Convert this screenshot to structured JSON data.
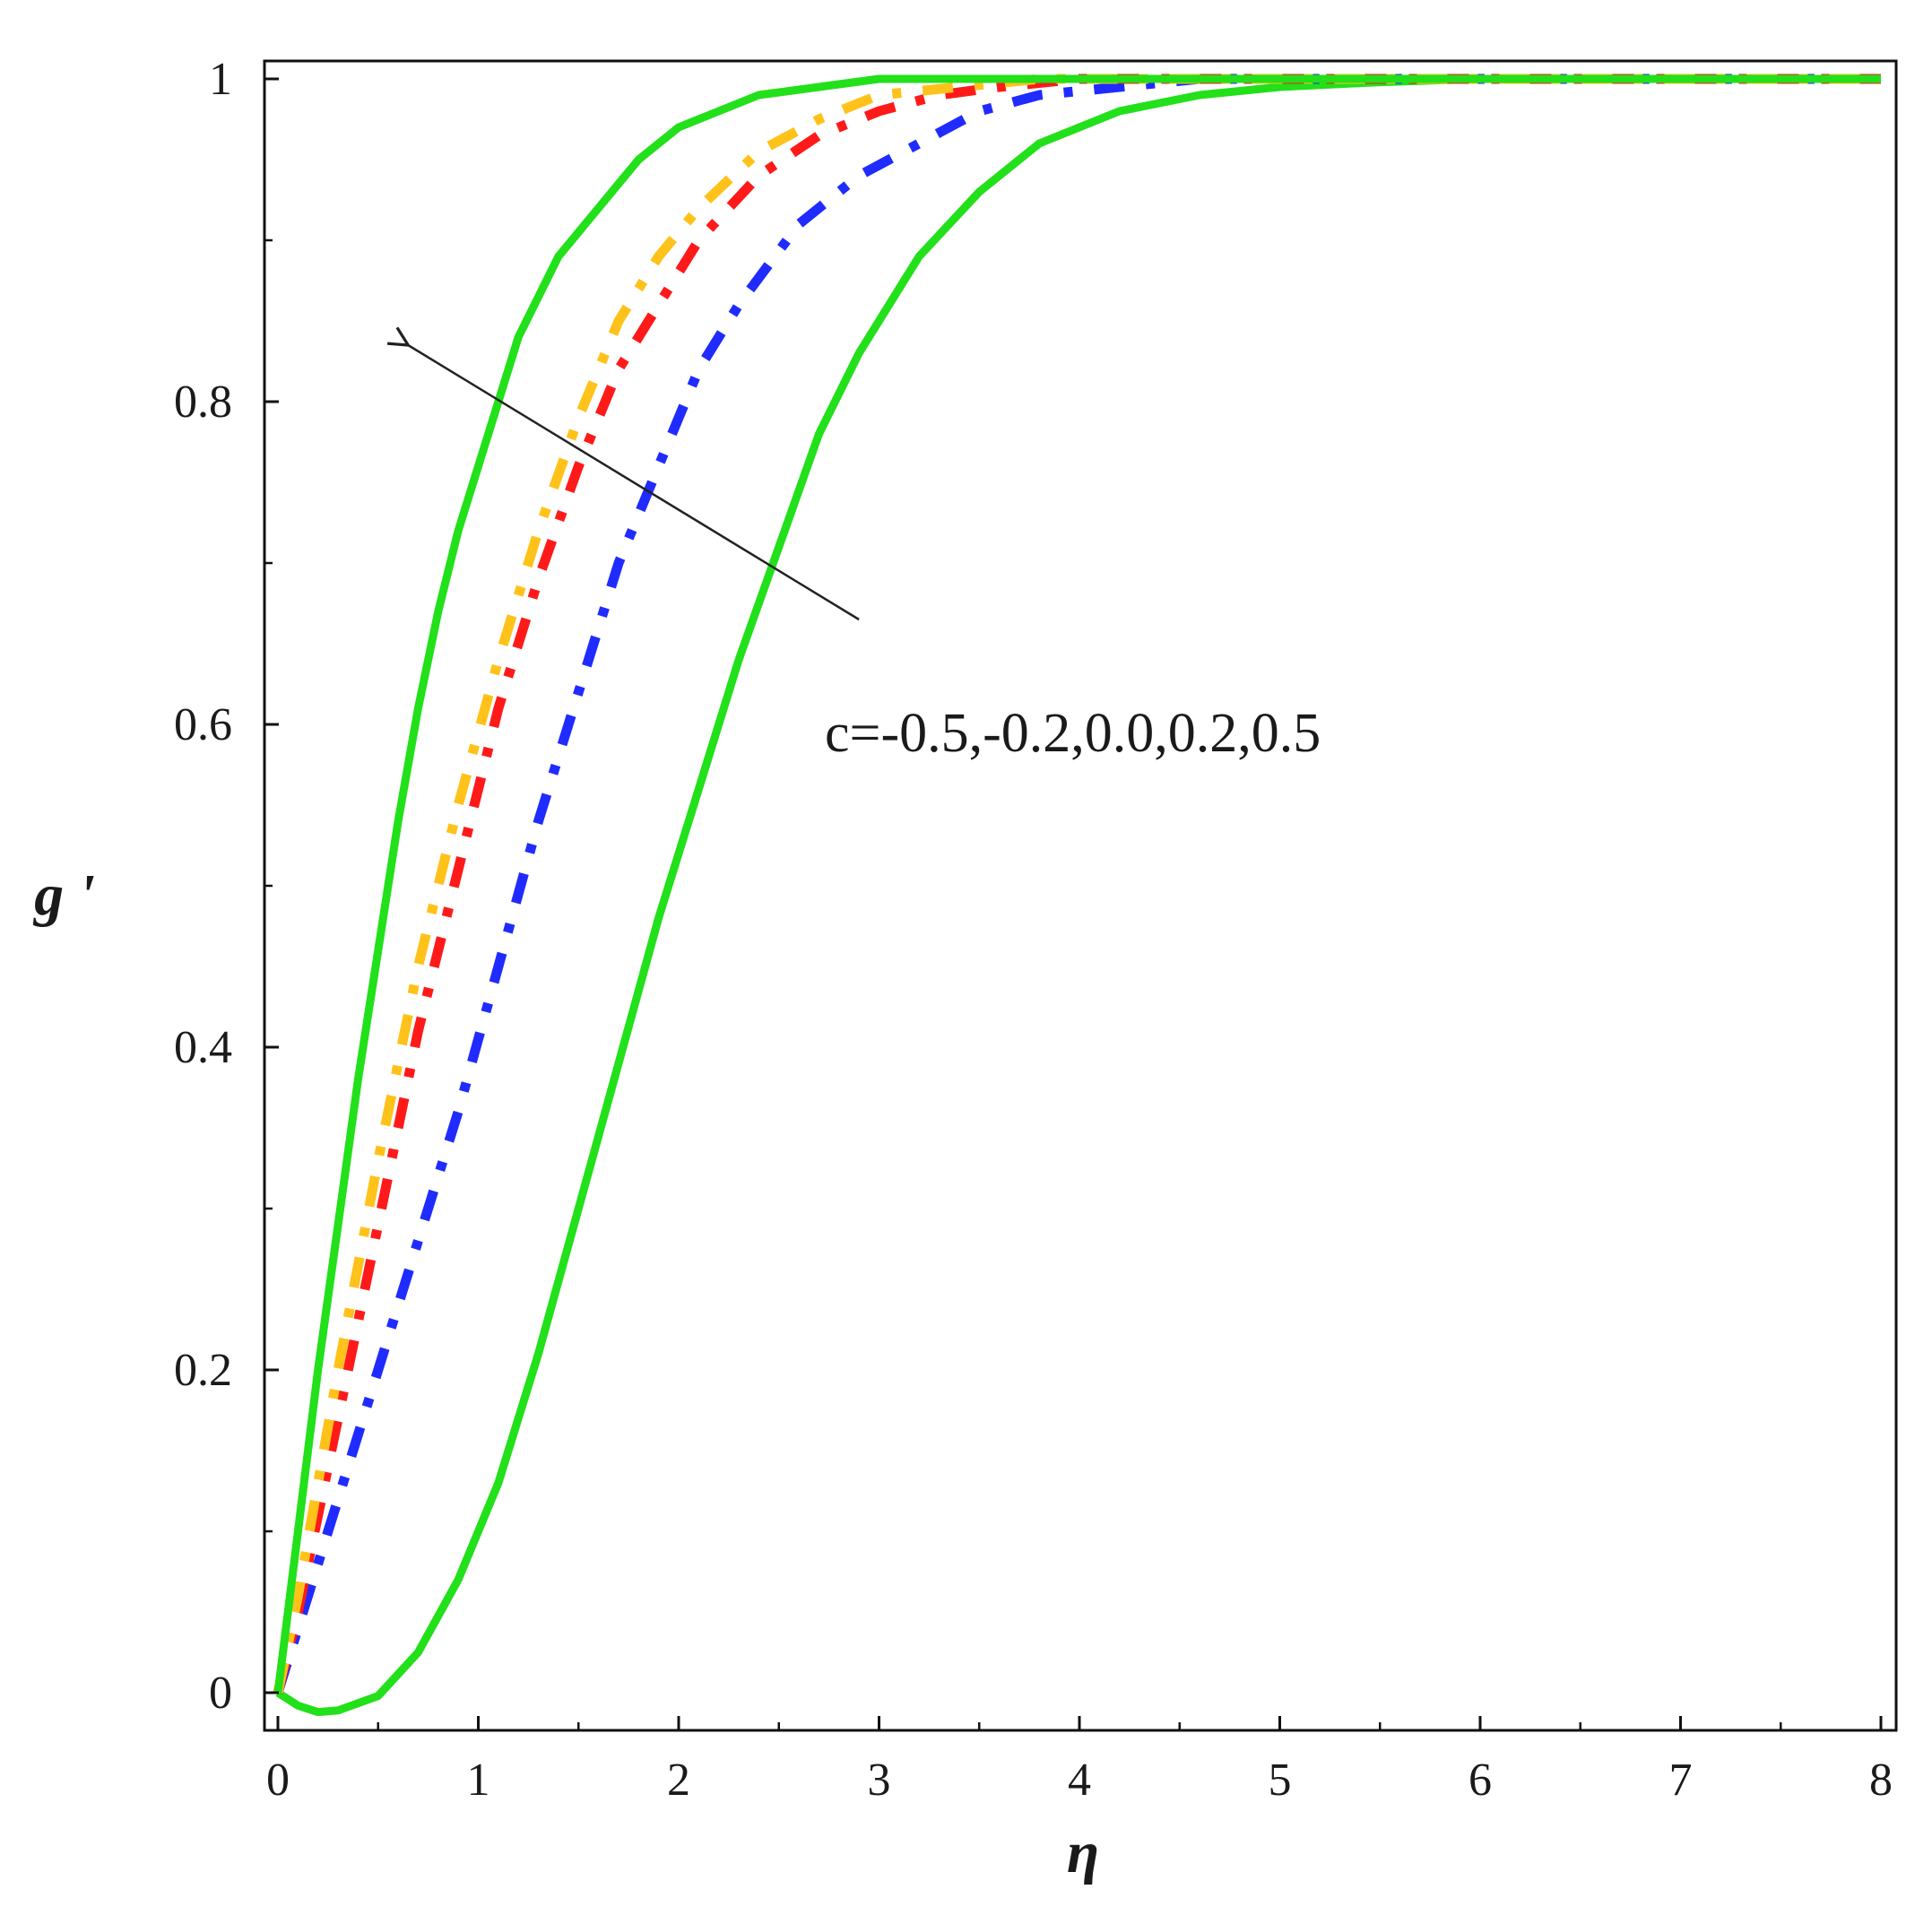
{
  "chart_data": {
    "type": "line",
    "title": "",
    "xlabel": "η",
    "ylabel": "g '",
    "xlim": [
      0,
      8
    ],
    "ylim": [
      -0.015,
      1
    ],
    "xticks": [
      "0",
      "1",
      "2",
      "3",
      "4",
      "5",
      "6",
      "7",
      "8"
    ],
    "yticks": [
      "0",
      "0.2",
      "0.4",
      "0.6",
      "0.8",
      "1"
    ],
    "grid": false,
    "legend": "none",
    "annotation": {
      "text": "c=-0.5,-0.2,0.0,0.2,0.5",
      "arrow_from": [
        2.9,
        0.665
      ],
      "arrow_to": [
        0.65,
        0.835
      ]
    },
    "series": [
      {
        "color": "#22e01a",
        "style": "solid",
        "x": [
          0,
          0.1,
          0.2,
          0.3,
          0.5,
          0.7,
          0.9,
          1.1,
          1.3,
          1.5,
          1.7,
          1.9,
          2.1,
          2.3,
          2.5,
          2.7,
          2.9,
          3.2,
          3.5,
          3.8,
          4.2,
          4.6,
          5.0,
          5.5,
          6,
          8
        ],
        "y": [
          0.0,
          -0.008,
          -0.012,
          -0.011,
          -0.002,
          0.025,
          0.07,
          0.13,
          0.21,
          0.3,
          0.39,
          0.48,
          0.56,
          0.64,
          0.71,
          0.78,
          0.83,
          0.89,
          0.93,
          0.96,
          0.98,
          0.99,
          0.995,
          0.998,
          1.0,
          1.0
        ]
      },
      {
        "color": "#1f2bff",
        "style": "dashdot",
        "x": [
          0,
          0.1,
          0.3,
          0.5,
          0.7,
          0.9,
          1.1,
          1.3,
          1.5,
          1.7,
          1.9,
          2.1,
          2.3,
          2.6,
          2.9,
          3.2,
          3.5,
          3.8,
          4.2,
          4.6,
          5.5,
          8
        ],
        "y": [
          0.0,
          0.04,
          0.12,
          0.2,
          0.28,
          0.36,
          0.45,
          0.54,
          0.62,
          0.7,
          0.76,
          0.82,
          0.86,
          0.91,
          0.94,
          0.96,
          0.98,
          0.99,
          0.995,
          1.0,
          1.0,
          1.0
        ]
      },
      {
        "color": "#ff1a1a",
        "style": "dashdot",
        "x": [
          0,
          0.1,
          0.3,
          0.5,
          0.7,
          0.9,
          1.1,
          1.3,
          1.5,
          1.7,
          1.9,
          2.1,
          2.4,
          2.7,
          3.0,
          3.3,
          3.6,
          4.0,
          4.5,
          8
        ],
        "y": [
          0.0,
          0.05,
          0.17,
          0.29,
          0.41,
          0.51,
          0.61,
          0.69,
          0.76,
          0.82,
          0.86,
          0.9,
          0.94,
          0.965,
          0.98,
          0.99,
          0.995,
          1.0,
          1.0,
          1.0
        ]
      },
      {
        "color": "#ffc21a",
        "style": "dashdot",
        "x": [
          0,
          0.1,
          0.3,
          0.5,
          0.7,
          0.9,
          1.1,
          1.3,
          1.5,
          1.7,
          1.9,
          2.1,
          2.4,
          2.7,
          3.0,
          3.4,
          3.8,
          4.2,
          8
        ],
        "y": [
          0.0,
          0.06,
          0.2,
          0.33,
          0.45,
          0.55,
          0.64,
          0.72,
          0.79,
          0.85,
          0.89,
          0.92,
          0.955,
          0.975,
          0.99,
          0.995,
          1.0,
          1.0,
          1.0
        ]
      },
      {
        "color": "#22e01a",
        "style": "solid",
        "x": [
          0,
          0.1,
          0.2,
          0.3,
          0.4,
          0.5,
          0.6,
          0.7,
          0.8,
          0.9,
          1.0,
          1.1,
          1.2,
          1.4,
          1.6,
          1.8,
          2.0,
          2.2,
          2.4,
          2.7,
          3.0,
          3.5,
          4,
          8
        ],
        "y": [
          0.0,
          0.1,
          0.2,
          0.29,
          0.38,
          0.46,
          0.54,
          0.61,
          0.67,
          0.72,
          0.76,
          0.8,
          0.84,
          0.89,
          0.92,
          0.95,
          0.97,
          0.98,
          0.99,
          0.995,
          1.0,
          1.0,
          1.0,
          1.0
        ]
      }
    ]
  }
}
